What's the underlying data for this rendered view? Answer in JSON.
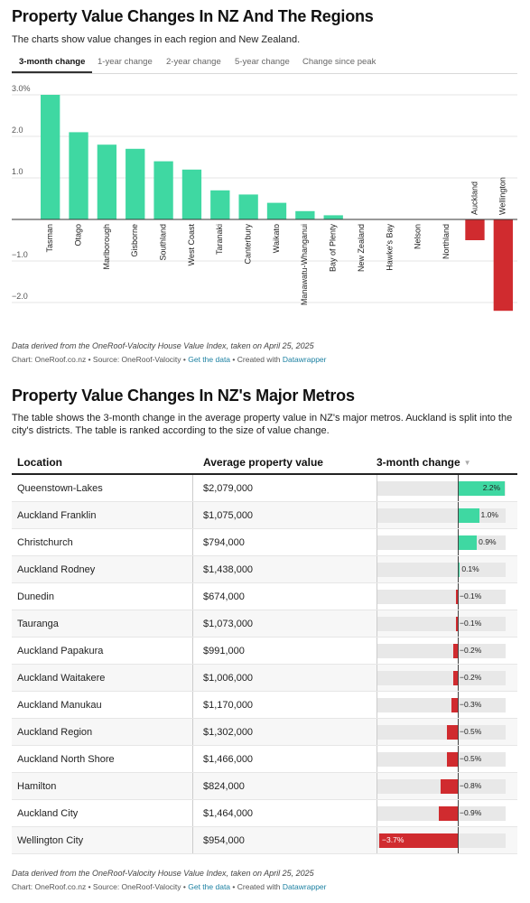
{
  "section1": {
    "title": "Property Value Changes In NZ And The Regions",
    "description": "The charts show value changes in each region and New Zealand.",
    "tabs": [
      "3-month change",
      "1-year change",
      "2-year change",
      "5-year change",
      "Change since peak"
    ],
    "active_tab": 0,
    "notes": "Data derived from the OneRoof-Valocity House Value Index, taken on April 25, 2025",
    "byline_prefix": "Chart: OneRoof.co.nz • Source: OneRoof-Valocity • ",
    "get_data": "Get the data",
    "created_with": " • Created with ",
    "datawrapper": "Datawrapper"
  },
  "section2": {
    "title": "Property Value Changes In NZ's Major Metros",
    "description": "The table shows the 3-month change in the average property value in NZ's major metros. Auckland is split into the city's districts. The table is ranked according to the size of value change.",
    "headers": {
      "location": "Location",
      "value": "Average property value",
      "change": "3-month change"
    },
    "sort_icon": "sort-down-icon",
    "notes": "Data derived from the OneRoof-Valocity House Value Index, taken on April 25, 2025",
    "byline_prefix": "Chart: OneRoof.co.nz • Source: OneRoof-Valocity • ",
    "get_data": "Get the data",
    "created_with": " • Created with ",
    "datawrapper": "Datawrapper"
  },
  "colors": {
    "positive": "#3fd8a2",
    "negative": "#d02b2f",
    "grid": "#e5e5e5",
    "link": "#1d81a2"
  },
  "chart_data": [
    {
      "type": "bar",
      "categories": [
        "Tasman",
        "Otago",
        "Marlborough",
        "Gisborne",
        "Southland",
        "West Coast",
        "Taranaki",
        "Canterbury",
        "Waikato",
        "Manawatu-Whanganui",
        "Bay of Plenty",
        "New Zealand",
        "Hawke's Bay",
        "Nelson",
        "Northland",
        "Auckland",
        "Wellington"
      ],
      "values": [
        3.0,
        2.1,
        1.8,
        1.7,
        1.4,
        1.2,
        0.7,
        0.6,
        0.4,
        0.2,
        0.1,
        0.0,
        0.0,
        0.0,
        0.0,
        -0.5,
        -2.2
      ],
      "yticks": [
        "3.0%",
        "2.0",
        "1.0",
        "−1.0",
        "−2.0"
      ],
      "ytick_values": [
        3,
        2,
        1,
        -1,
        -2
      ],
      "ylim": [
        -2.2,
        3.0
      ],
      "grid": true
    },
    {
      "type": "table",
      "rows": [
        {
          "location": "Queenstown-Lakes",
          "value": "$2,079,000",
          "change": 2.2,
          "label": "2.2%"
        },
        {
          "location": "Auckland Franklin",
          "value": "$1,075,000",
          "change": 1.0,
          "label": "1.0%"
        },
        {
          "location": "Christchurch",
          "value": "$794,000",
          "change": 0.9,
          "label": "0.9%"
        },
        {
          "location": "Auckland Rodney",
          "value": "$1,438,000",
          "change": 0.1,
          "label": "0.1%"
        },
        {
          "location": "Dunedin",
          "value": "$674,000",
          "change": -0.1,
          "label": "−0.1%"
        },
        {
          "location": "Tauranga",
          "value": "$1,073,000",
          "change": -0.1,
          "label": "−0.1%"
        },
        {
          "location": "Auckland Papakura",
          "value": "$991,000",
          "change": -0.2,
          "label": "−0.2%"
        },
        {
          "location": "Auckland Waitakere",
          "value": "$1,006,000",
          "change": -0.2,
          "label": "−0.2%"
        },
        {
          "location": "Auckland Manukau",
          "value": "$1,170,000",
          "change": -0.3,
          "label": "−0.3%"
        },
        {
          "location": "Auckland Region",
          "value": "$1,302,000",
          "change": -0.5,
          "label": "−0.5%"
        },
        {
          "location": "Auckland North Shore",
          "value": "$1,466,000",
          "change": -0.5,
          "label": "−0.5%"
        },
        {
          "location": "Hamilton",
          "value": "$824,000",
          "change": -0.8,
          "label": "−0.8%"
        },
        {
          "location": "Auckland City",
          "value": "$1,464,000",
          "change": -0.9,
          "label": "−0.9%"
        },
        {
          "location": "Wellington City",
          "value": "$954,000",
          "change": -3.7,
          "label": "−3.7%"
        }
      ]
    }
  ]
}
